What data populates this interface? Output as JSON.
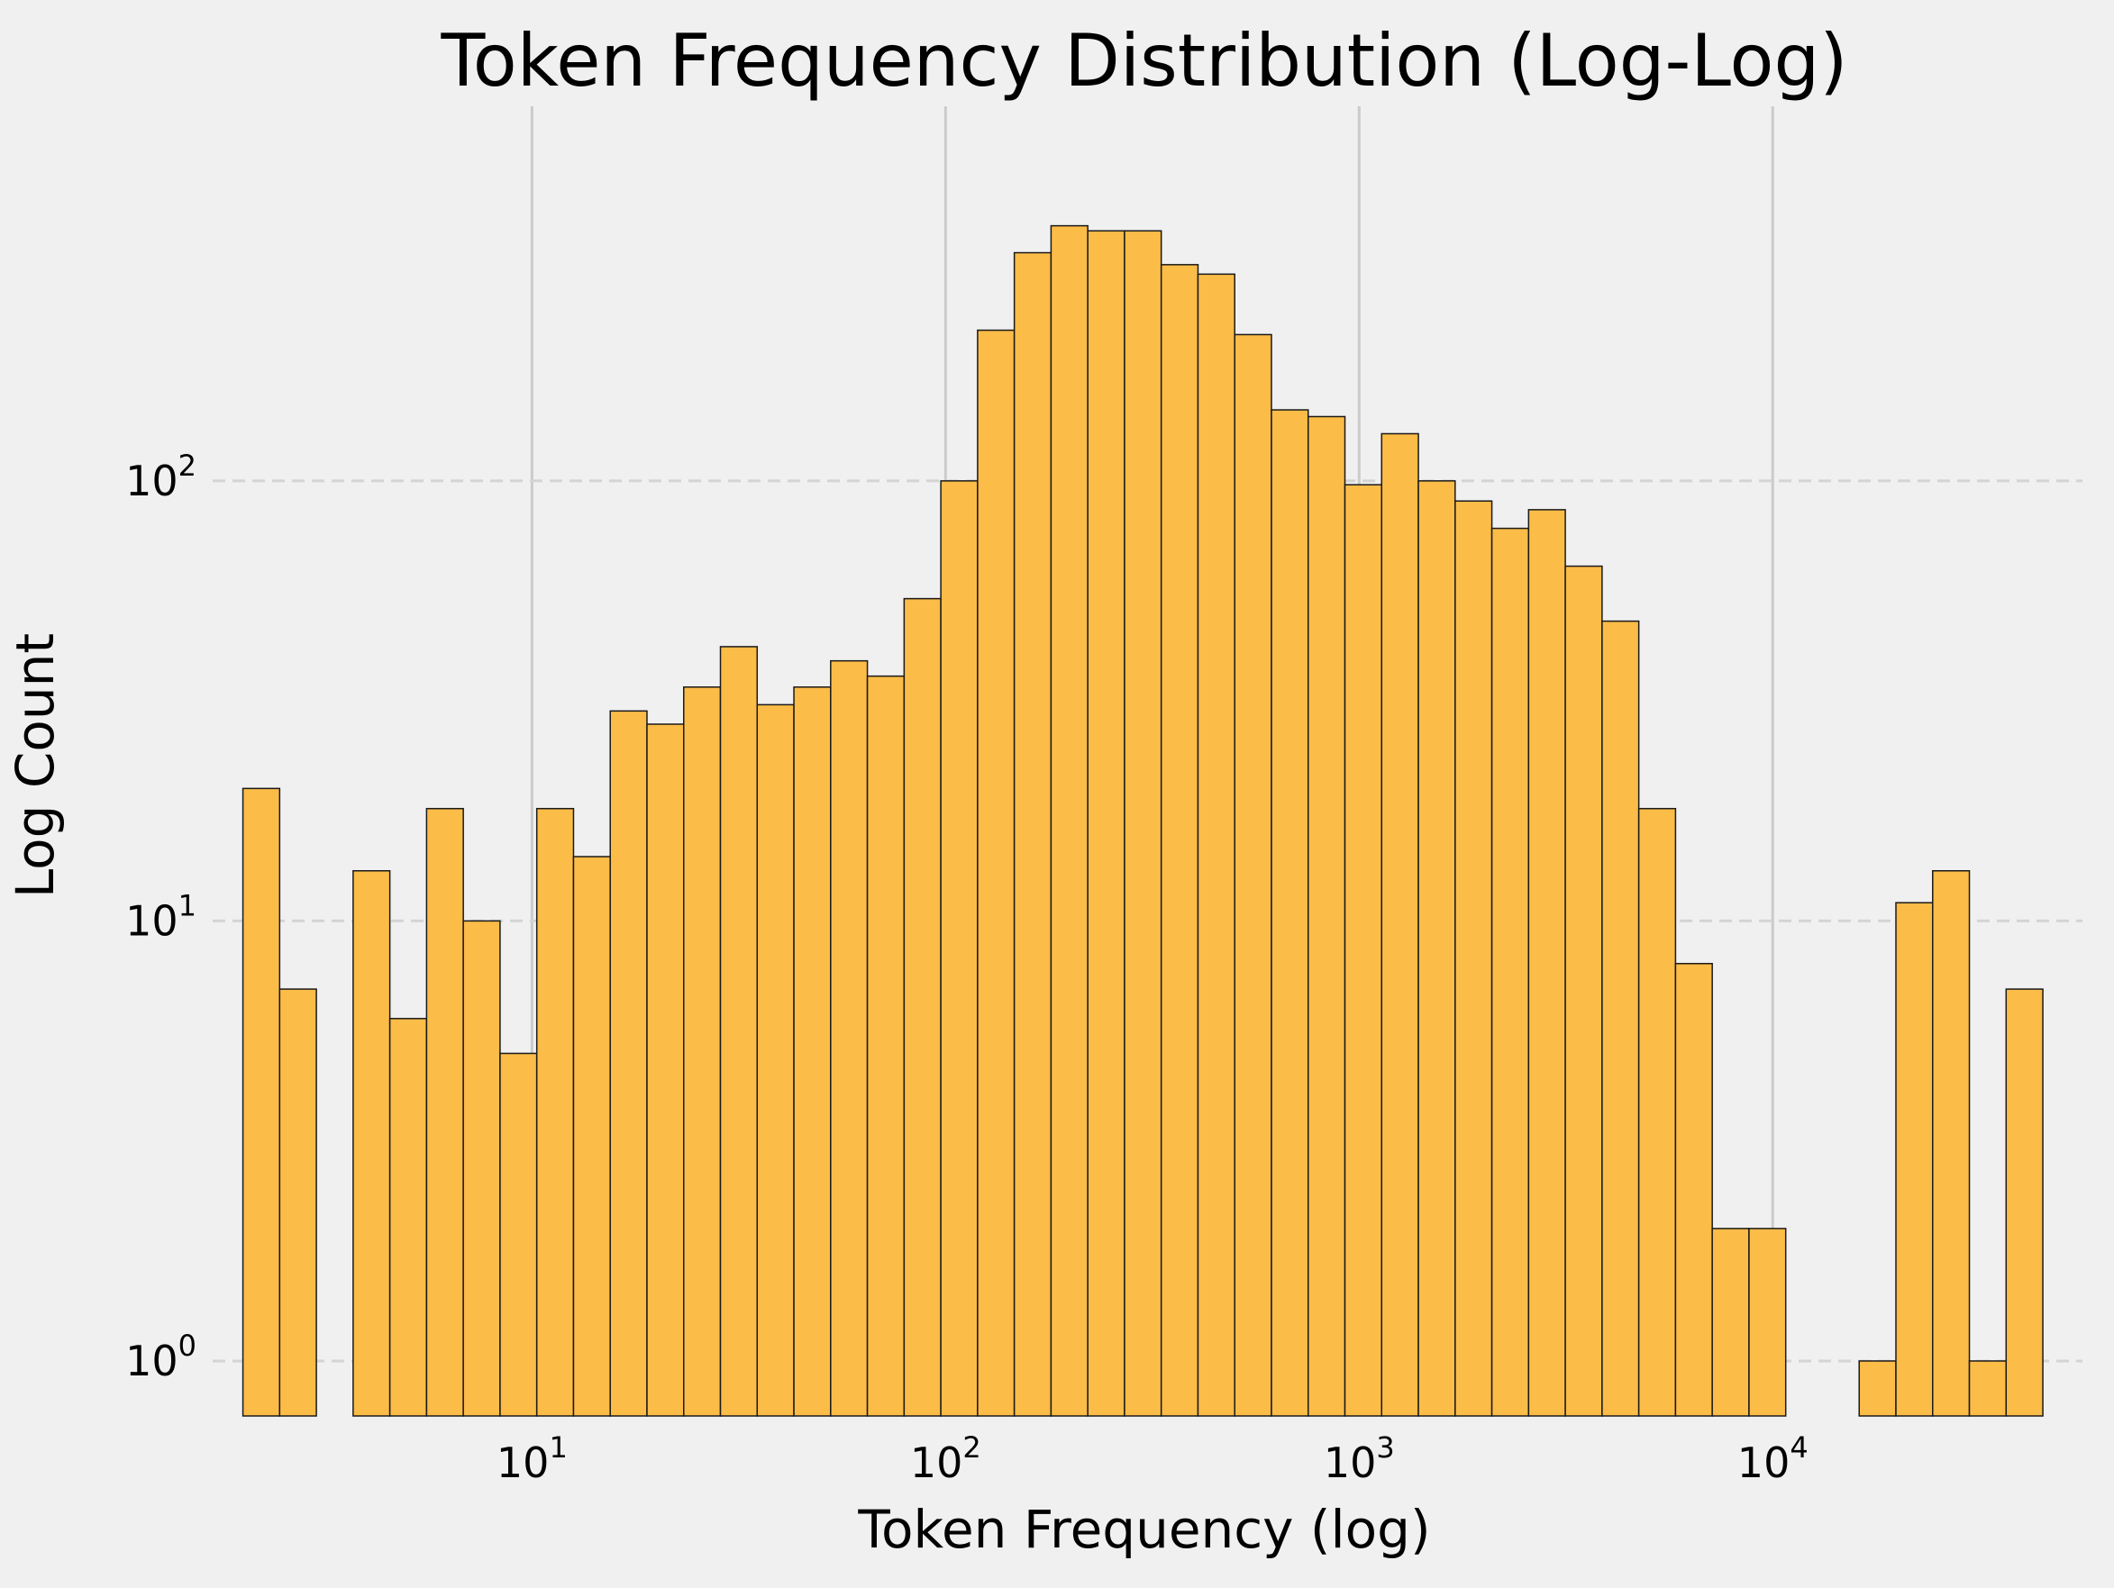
{
  "chart_data": {
    "type": "bar",
    "title": "Token Frequency Distribution (Log-Log)",
    "xlabel": "Token Frequency (log)",
    "ylabel": "Log Count",
    "xscale": "log",
    "yscale": "log",
    "xlim": [
      1.69,
      56100
    ],
    "ylim": [
      0.75,
      710
    ],
    "x_ticks": [
      {
        "base": "10",
        "exp": "1",
        "value": 10
      },
      {
        "base": "10",
        "exp": "2",
        "value": 100
      },
      {
        "base": "10",
        "exp": "3",
        "value": 1000
      },
      {
        "base": "10",
        "exp": "4",
        "value": 10000
      }
    ],
    "y_ticks": [
      {
        "base": "10",
        "exp": "0",
        "value": 1
      },
      {
        "base": "10",
        "exp": "1",
        "value": 10
      },
      {
        "base": "10",
        "exp": "2",
        "value": 100
      }
    ],
    "bin_range": [
      2.0,
      45000
    ],
    "bin_count": 49,
    "counts": [
      20,
      7,
      0,
      13,
      6,
      18,
      10,
      5,
      18,
      14,
      30,
      28,
      34,
      42,
      31,
      34,
      39,
      36,
      54,
      100,
      220,
      330,
      380,
      370,
      370,
      310,
      295,
      215,
      145,
      140,
      98,
      128,
      100,
      90,
      78,
      86,
      64,
      48,
      18,
      8,
      2,
      2,
      0,
      0,
      1,
      11,
      13,
      1,
      7
    ],
    "bar_color": "#fbbc48",
    "edge_color": "#1a1a1a",
    "grid": {
      "x": "solid",
      "y": "dashed"
    }
  }
}
